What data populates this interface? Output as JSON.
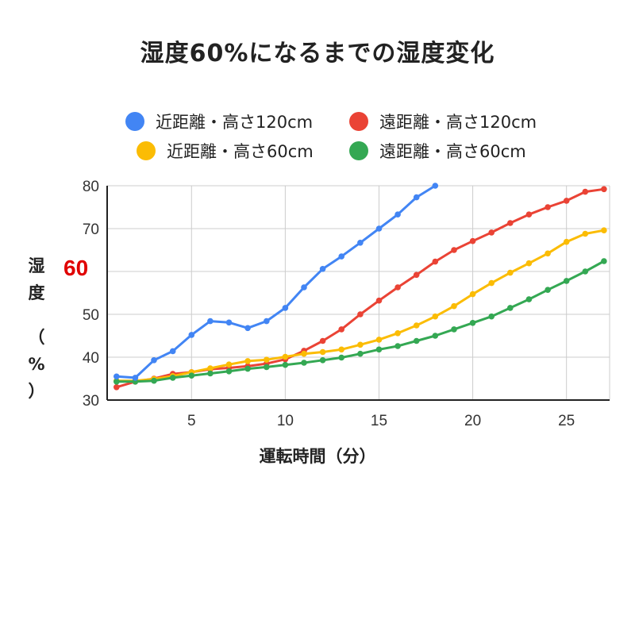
{
  "chart_data": {
    "type": "line",
    "title": "湿度60%になるまでの湿度変化",
    "xlabel": "運転時間（分）",
    "ylabel_chars": [
      "湿",
      "度",
      "（",
      "%",
      "）"
    ],
    "highlight_label": "60",
    "highlight_color": "#e00000",
    "xlim": [
      0.5,
      27.3
    ],
    "ylim": [
      30,
      80
    ],
    "xticks": [
      5,
      10,
      15,
      20,
      25
    ],
    "yticks": [
      30,
      40,
      50,
      60,
      70,
      80
    ],
    "ytick_labels_shown": [
      "30",
      "40",
      "50",
      "70",
      "80"
    ],
    "grid": true,
    "legend_position": "top",
    "series": [
      {
        "name": "近距離・高さ120cm",
        "color": "#4285f4",
        "x": [
          1,
          2,
          3,
          4,
          5,
          6,
          7,
          8,
          9,
          10,
          11,
          12,
          13,
          14,
          15,
          16,
          17,
          18
        ],
        "values": [
          35.5,
          35.2,
          39.3,
          41.4,
          45.2,
          48.4,
          48.1,
          46.8,
          48.4,
          51.5,
          56.3,
          60.6,
          63.5,
          66.7,
          70.0,
          73.3,
          77.3,
          80.0
        ]
      },
      {
        "name": "遠距離・高さ120cm",
        "color": "#ea4335",
        "x": [
          1,
          2,
          3,
          4,
          5,
          6,
          7,
          8,
          9,
          10,
          11,
          12,
          13,
          14,
          15,
          16,
          17,
          18,
          19,
          20,
          21,
          22,
          23,
          24,
          25,
          26,
          27
        ],
        "values": [
          33.0,
          34.3,
          35.0,
          36.1,
          36.5,
          37.2,
          37.5,
          37.9,
          38.5,
          39.5,
          41.5,
          43.8,
          46.5,
          50.0,
          53.2,
          56.3,
          59.2,
          62.3,
          65.0,
          67.1,
          69.1,
          71.3,
          73.3,
          75.0,
          76.5,
          78.6,
          79.2
        ]
      },
      {
        "name": "近距離・高さ60cm",
        "color": "#fbbc04",
        "x": [
          1,
          2,
          3,
          4,
          5,
          6,
          7,
          8,
          9,
          10,
          11,
          12,
          13,
          14,
          15,
          16,
          17,
          18,
          19,
          20,
          21,
          22,
          23,
          24,
          25,
          26,
          27
        ],
        "values": [
          34.5,
          34.5,
          34.9,
          35.6,
          36.5,
          37.4,
          38.3,
          39.1,
          39.4,
          40.1,
          40.8,
          41.2,
          41.8,
          42.9,
          44.1,
          45.6,
          47.4,
          49.5,
          51.9,
          54.7,
          57.3,
          59.7,
          61.9,
          64.2,
          66.9,
          68.8,
          69.6
        ]
      },
      {
        "name": "遠距離・高さ60cm",
        "color": "#34a853",
        "x": [
          1,
          2,
          3,
          4,
          5,
          6,
          7,
          8,
          9,
          10,
          11,
          12,
          13,
          14,
          15,
          16,
          17,
          18,
          19,
          20,
          21,
          22,
          23,
          24,
          25,
          26,
          27
        ],
        "values": [
          34.3,
          34.3,
          34.5,
          35.2,
          35.7,
          36.2,
          36.7,
          37.3,
          37.7,
          38.2,
          38.7,
          39.3,
          39.9,
          40.8,
          41.8,
          42.6,
          43.8,
          45.0,
          46.5,
          48.0,
          49.5,
          51.5,
          53.5,
          55.7,
          57.8,
          60.0,
          62.4
        ]
      }
    ]
  }
}
